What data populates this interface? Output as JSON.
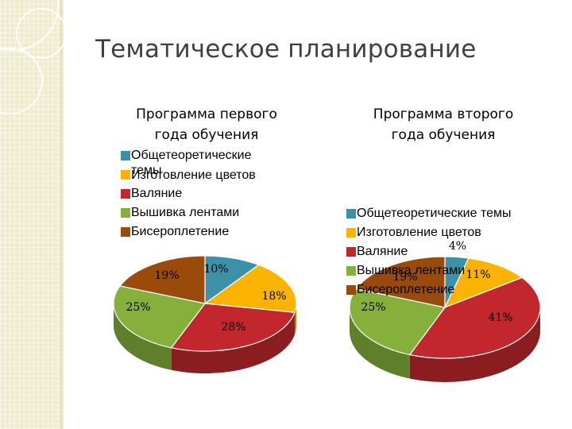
{
  "title": "Тематическое планирование",
  "colors": {
    "theory": "#3c91a9",
    "flowers": "#fab301",
    "felting": "#c1272d",
    "ribbon": "#86b03c",
    "beading": "#9a4a0b"
  },
  "chart_data": [
    {
      "type": "pie",
      "title_lines": [
        "Программа первого",
        "года обучения"
      ],
      "legend_lines": [
        "Общетеоретические",
        "темы",
        "Изготовление цветов",
        "Валяние",
        "Вышивка лентами",
        "Бисероплетение"
      ],
      "categories": [
        "Общетеоретические темы",
        "Изготовление цветов",
        "Валяние",
        "Вышивка лентами",
        "Бисероплетение"
      ],
      "values": [
        10,
        18,
        28,
        25,
        19
      ],
      "labels": [
        "10%",
        "18%",
        "28%",
        "25%",
        "19%"
      ],
      "legend": "top"
    },
    {
      "type": "pie",
      "title_lines": [
        "Программа второго",
        "года обучения"
      ],
      "legend_lines": [
        "Общетеоретические темы",
        "Изготовление цветов",
        "Валяние",
        "Вышивка лентами",
        "Бисероплетение"
      ],
      "categories": [
        "Общетеоретические темы",
        "Изготовление цветов",
        "Валяние",
        "Вышивка лентами",
        "Бисероплетение"
      ],
      "values": [
        4,
        11,
        41,
        25,
        19
      ],
      "labels": [
        "4%",
        "11%",
        "41%",
        "25%",
        "19%"
      ],
      "legend": "top"
    }
  ]
}
